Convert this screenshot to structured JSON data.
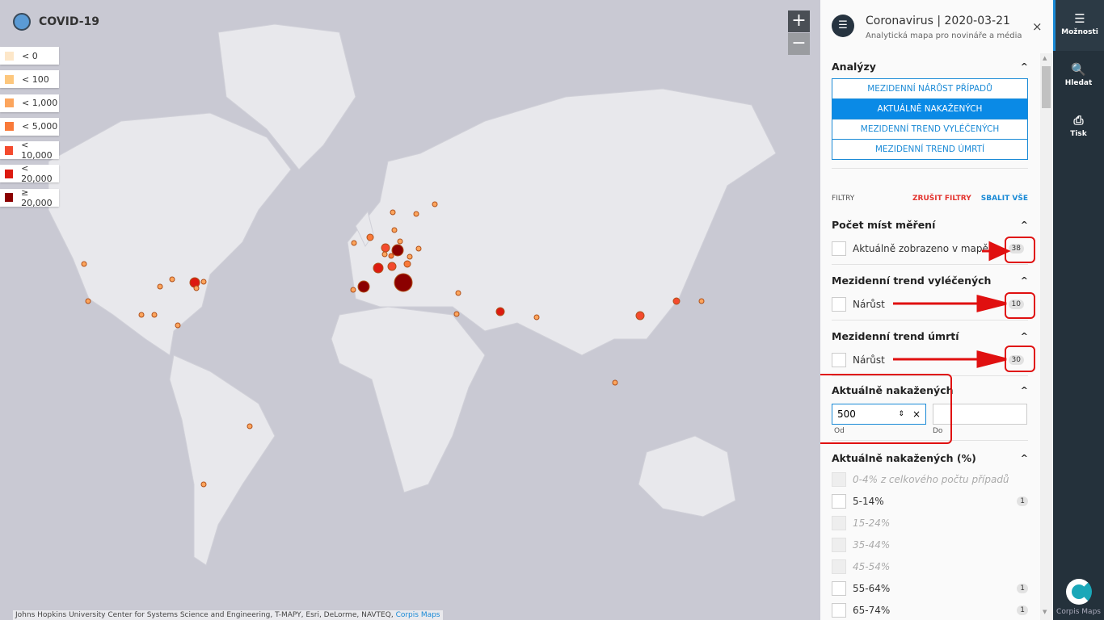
{
  "app": {
    "title": "COVID-19",
    "icon": "globe-icon"
  },
  "legend": [
    {
      "label": "< 0",
      "color": "#fde7c9"
    },
    {
      "label": "< 100",
      "color": "#fdc77d"
    },
    {
      "label": "< 1,000",
      "color": "#fca55d"
    },
    {
      "label": "< 5,000",
      "color": "#f97a3a"
    },
    {
      "label": "< 10,000",
      "color": "#f44a2e"
    },
    {
      "label": "< 20,000",
      "color": "#dc1a10"
    },
    {
      "label": "≥ 20,000",
      "color": "#8b0000"
    }
  ],
  "zoom": {
    "in": "+",
    "out": "−"
  },
  "attribution": {
    "text": "Johns Hopkins University Center for Systems Science and Engineering, T-MAPY, Esri, DeLorme, NAVTEQ,",
    "link": "Corpis Maps"
  },
  "panel": {
    "title": "Coronavirus | 2020-03-21",
    "subtitle": "Analytická mapa pro novináře a média",
    "close": "×",
    "analyses": {
      "title": "Analýzy",
      "items": [
        "MEZIDENNÍ NÁRŮST PŘÍPADŮ",
        "AKTUÁLNĚ NAKAŽENÝCH",
        "MEZIDENNÍ TREND VYLÉČENÝCH",
        "MEZIDENNÍ TREND ÚMRTÍ"
      ],
      "active": 1
    },
    "filters": {
      "label": "FILTRY",
      "clear": "ZRUŠIT FILTRY",
      "collapse": "SBALIT VŠE"
    },
    "sections": [
      {
        "title": "Počet míst měření",
        "item": "Aktuálně zobrazeno v mapě",
        "count": "38"
      },
      {
        "title": "Mezidenní trend vyléčených",
        "item": "Nárůst",
        "count": "10"
      },
      {
        "title": "Mezidenní trend úmrtí",
        "item": "Nárůst",
        "count": "30"
      }
    ],
    "range": {
      "title": "Aktuálně nakažených",
      "from_value": "500",
      "to_value": "",
      "from_label": "Od",
      "to_label": "Do"
    },
    "percent": {
      "title": "Aktuálně nakažených (%)",
      "items": [
        {
          "label": "0-4% z celkového počtu případů",
          "disabled": true,
          "count": ""
        },
        {
          "label": "5-14%",
          "disabled": false,
          "count": "1"
        },
        {
          "label": "15-24%",
          "disabled": true,
          "count": ""
        },
        {
          "label": "35-44%",
          "disabled": true,
          "count": ""
        },
        {
          "label": "45-54%",
          "disabled": true,
          "count": ""
        },
        {
          "label": "55-64%",
          "disabled": false,
          "count": "1"
        },
        {
          "label": "65-74%",
          "disabled": false,
          "count": "1"
        }
      ]
    }
  },
  "sidebar": {
    "items": [
      {
        "label": "Možnosti",
        "icon": "database-icon"
      },
      {
        "label": "Hledat",
        "icon": "search-icon"
      },
      {
        "label": "Tisk",
        "icon": "print-icon"
      }
    ],
    "brand": "Corpis Maps"
  }
}
